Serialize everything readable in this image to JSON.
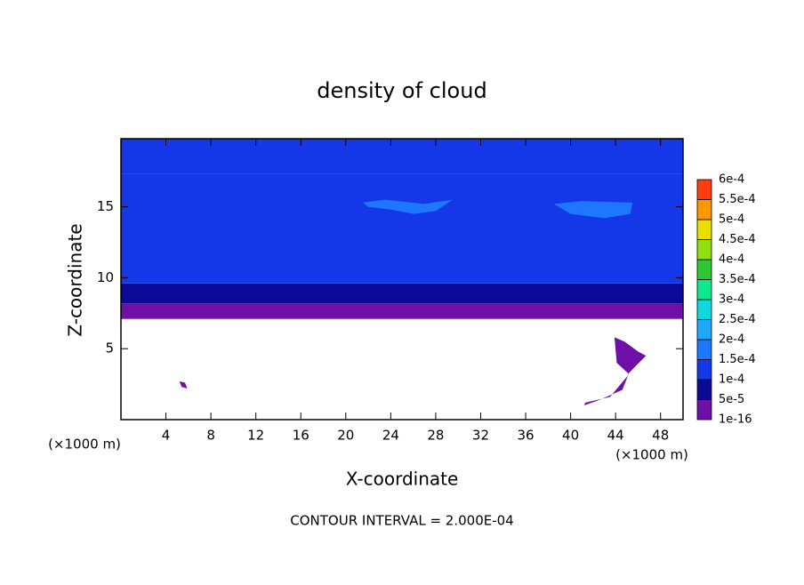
{
  "chart_data": {
    "type": "contour",
    "title": "density of cloud",
    "x_label": "X-coordinate",
    "y_label": "Z-coordinate",
    "x_unit": "(×1000 m)",
    "y_unit": "(×1000 m)",
    "note": "CONTOUR INTERVAL = 2.000E-04",
    "xlim": [
      0,
      50
    ],
    "ylim": [
      0,
      19.8
    ],
    "xticks": [
      4,
      8,
      12,
      16,
      20,
      24,
      28,
      32,
      36,
      40,
      44,
      48
    ],
    "yticks": [
      5,
      10,
      15
    ],
    "profile": {
      "z": [
        7.1,
        8.2,
        9.6,
        17.3
      ],
      "values": [
        3e-05,
        7e-05,
        0.00012,
        0.00011
      ]
    },
    "patches": [
      {
        "x": [
          21.5,
          23.5,
          27,
          29.5,
          28,
          26,
          24,
          22
        ],
        "z": [
          15.3,
          15.5,
          15.2,
          15.5,
          14.7,
          14.5,
          14.8,
          15
        ],
        "value": 0.00016
      },
      {
        "x": [
          38.5,
          41,
          45.5,
          45.3,
          43,
          40
        ],
        "z": [
          15.2,
          15.4,
          15.3,
          14.5,
          14.2,
          14.5
        ],
        "value": 0.00016
      },
      {
        "x": [
          41.3,
          43.5,
          45.2,
          44.1,
          43.9,
          44.8,
          46,
          46.7,
          45.2,
          44.6,
          42.6,
          41.2
        ],
        "z": [
          1.2,
          1.6,
          3.2,
          4,
          5.8,
          5.5,
          4.8,
          4.5,
          3.3,
          2.1,
          1.4,
          1
        ],
        "value": 3e-05
      },
      {
        "x": [
          5.2,
          5.7,
          5.9,
          5.4
        ],
        "z": [
          2.7,
          2.6,
          2.2,
          2.3
        ],
        "value": 3e-05
      }
    ],
    "levels": [
      {
        "value": 1e-16,
        "label": "1e-16"
      },
      {
        "value": 5e-05,
        "label": "5e-5"
      },
      {
        "value": 0.0001,
        "label": "1e-4"
      },
      {
        "value": 0.00015,
        "label": "1.5e-4"
      },
      {
        "value": 0.0002,
        "label": "2e-4"
      },
      {
        "value": 0.00025,
        "label": "2.5e-4"
      },
      {
        "value": 0.0003,
        "label": "3e-4"
      },
      {
        "value": 0.00035,
        "label": "3.5e-4"
      },
      {
        "value": 0.0004,
        "label": "4e-4"
      },
      {
        "value": 0.00045,
        "label": "4.5e-4"
      },
      {
        "value": 0.0005,
        "label": "5e-4"
      },
      {
        "value": 0.00055,
        "label": "5.5e-4"
      },
      {
        "value": 0.0006,
        "label": "6e-4"
      }
    ],
    "level_colors": [
      "#6e10a8",
      "#0a0a96",
      "#1438e8",
      "#1e78ff",
      "#1ea8ff",
      "#10d8e0",
      "#10e890",
      "#30c830",
      "#90e010",
      "#e8e000",
      "#ff9800",
      "#ff3c10"
    ]
  }
}
